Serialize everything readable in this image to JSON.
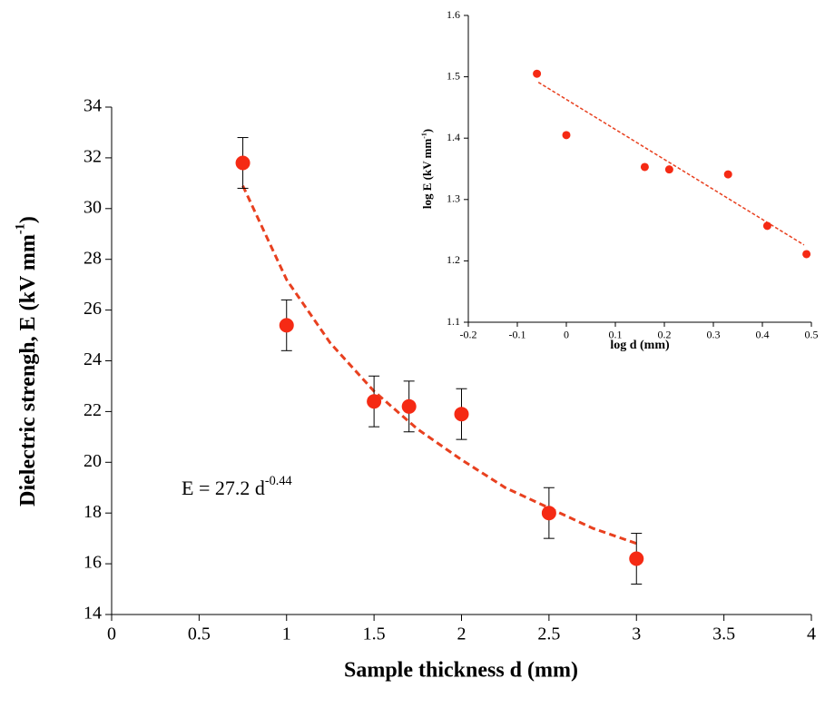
{
  "chart_data": [
    {
      "type": "scatter",
      "xlabel": "Sample thickness d (mm)",
      "ylabel": [
        "Dielectric strengh, E (kV mm",
        "-1",
        ")"
      ],
      "annotation": [
        "E = 27.2 d",
        "-0.44"
      ],
      "x": [
        0.75,
        1,
        1.5,
        1.7,
        2,
        2.5,
        3
      ],
      "values": [
        31.8,
        25.4,
        22.4,
        22.2,
        21.9,
        18.0,
        16.2
      ],
      "errors": [
        1.0,
        1.0,
        1.0,
        1.0,
        1.0,
        1.0,
        1.0
      ],
      "color": "#f52a14",
      "fit": {
        "x": [
          0.75,
          1,
          1.25,
          1.5,
          1.75,
          2,
          2.25,
          2.5,
          2.75,
          3
        ],
        "values": [
          30.9,
          27.2,
          24.7,
          22.8,
          21.3,
          20.1,
          19.0,
          18.2,
          17.4,
          16.8
        ],
        "color": "#e8401f"
      },
      "xlim": [
        0,
        4
      ],
      "xticks": [
        0,
        0.5,
        1,
        1.5,
        2,
        2.5,
        3,
        3.5,
        4
      ],
      "ylim": [
        14,
        34
      ],
      "yticks": [
        14,
        16,
        18,
        20,
        22,
        24,
        26,
        28,
        30,
        32,
        34
      ]
    },
    {
      "type": "scatter",
      "xlabel": "log d (mm)",
      "ylabel": [
        "log E (kV mm",
        "-1",
        ")"
      ],
      "x": [
        -0.06,
        0,
        0.16,
        0.21,
        0.33,
        0.41,
        0.49
      ],
      "values": [
        1.505,
        1.405,
        1.353,
        1.349,
        1.341,
        1.257,
        1.211
      ],
      "color": "#f52a14",
      "fit": {
        "x": [
          -0.057,
          0.485
        ],
        "values": [
          1.491,
          1.226
        ],
        "color": "#e8401f"
      },
      "xlim": [
        -0.2,
        0.5
      ],
      "xticks": [
        -0.2,
        -0.1,
        0,
        0.1,
        0.2,
        0.3,
        0.4,
        0.5
      ],
      "ylim": [
        1.1,
        1.6
      ],
      "yticks": [
        1.1,
        1.2,
        1.3,
        1.4,
        1.5,
        1.6
      ]
    }
  ]
}
